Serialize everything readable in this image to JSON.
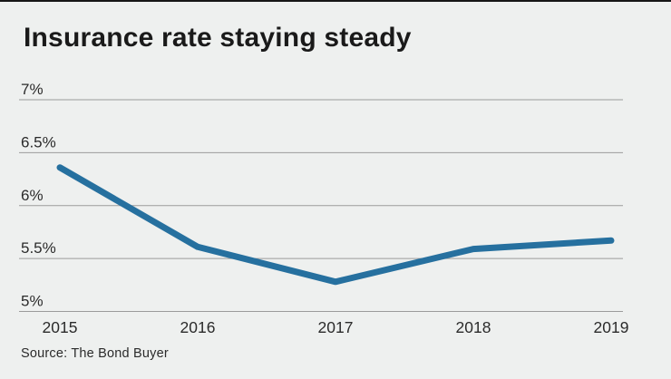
{
  "title": "Insurance rate staying steady",
  "source": "Source: The Bond Buyer",
  "colors": {
    "background": "#eef0ef",
    "line": "#26709f",
    "gridline": "#9b9b9b",
    "title_text": "#1a1a1a",
    "axis_text": "#2b2b2b"
  },
  "chart_data": {
    "type": "line",
    "title": "Insurance rate staying steady",
    "x": [
      "2015",
      "2016",
      "2017",
      "2018",
      "2019"
    ],
    "series": [
      {
        "name": "Insurance rate",
        "values": [
          6.36,
          5.61,
          5.28,
          5.59,
          5.67
        ]
      }
    ],
    "xlabel": "",
    "ylabel": "",
    "ylim": [
      5,
      7
    ],
    "yticks": [
      7,
      6.5,
      6,
      5.5,
      5
    ],
    "ytick_labels": [
      "7%",
      "6.5%",
      "6%",
      "5.5%",
      "5%"
    ],
    "grid": true,
    "legend": false,
    "source": "Source: The Bond Buyer"
  }
}
